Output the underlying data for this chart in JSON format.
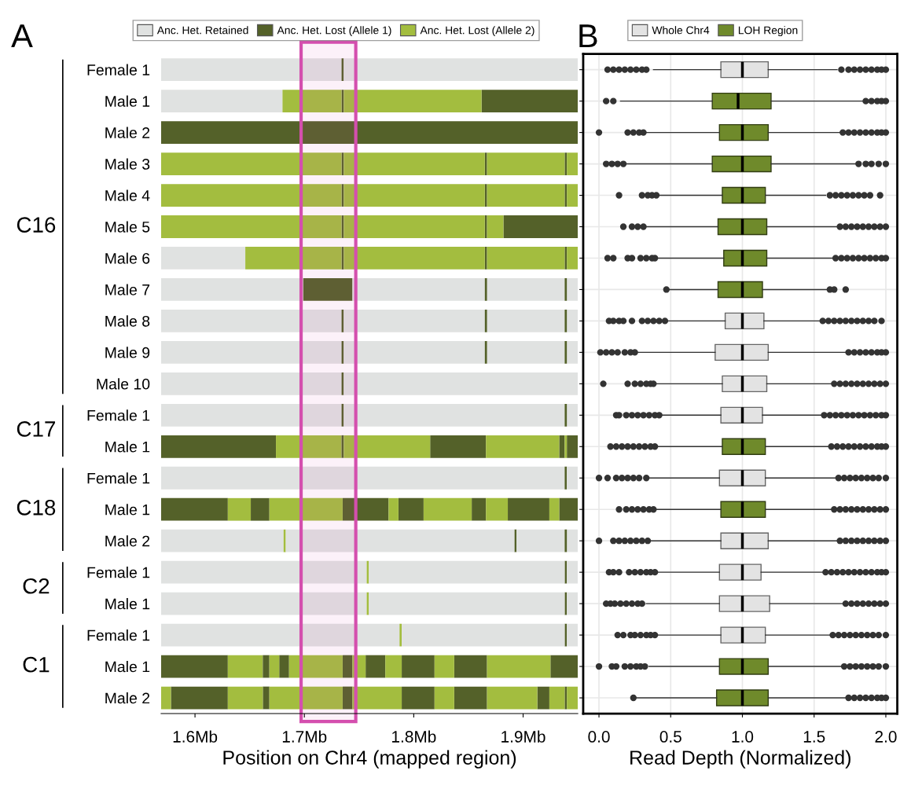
{
  "chart_data": [
    {
      "type": "bar",
      "title": "A",
      "orientation": "horizontal",
      "xlabel": "Position on Chr4 (mapped region)",
      "categories": [
        "Female 1",
        "Male 1",
        "Male 2",
        "Male 3",
        "Male 4",
        "Male 5",
        "Male 6",
        "Male 7",
        "Male 8",
        "Male 9",
        "Male 10",
        "Female 1",
        "Male 1",
        "Female 1",
        "Male 1",
        "Male 2",
        "Female 1",
        "Male 1",
        "Female 1",
        "Male 1",
        "Male 2"
      ],
      "annotations": [
        "C16",
        "C17",
        "C18",
        "C2",
        "C1"
      ],
      "xlim": [
        1.569,
        1.95
      ],
      "xticks": [
        {
          "value": 1.6,
          "label": "1.6Mb"
        },
        {
          "value": 1.7,
          "label": "1.7Mb"
        },
        {
          "value": 1.8,
          "label": "1.8Mb"
        },
        {
          "value": 1.9,
          "label": "1.9Mb"
        }
      ],
      "bands": [
        {
          "axis": "x",
          "from": 1.697,
          "to": 1.747,
          "color": "#d44fae"
        }
      ],
      "legend": "top",
      "series": [
        {
          "name": "Anc. Het. Retained",
          "color": "#e0e2e1",
          "base": [
            1.569,
            1.569,
            null,
            null,
            null,
            null,
            1.569,
            1.569,
            1.569,
            1.569,
            1.569,
            1.569,
            null,
            1.569,
            null,
            1.569,
            1.569,
            1.569,
            1.569,
            null,
            null
          ],
          "values": [
            0.165,
            0.111,
            null,
            null,
            null,
            null,
            0.077,
            0.13,
            0.165,
            0.165,
            0.165,
            0.165,
            null,
            0.369,
            null,
            0.112,
            0.188,
            0.188,
            0.218,
            null,
            null
          ]
        },
        {
          "name": "Anc. Het. Lost (Allele 1)",
          "color": "#546129",
          "base": [
            1.734,
            1.734,
            1.569,
            1.734,
            1.734,
            1.734,
            1.734,
            1.699,
            1.734,
            1.734,
            1.734,
            1.734,
            1.569,
            1.938,
            1.569,
            1.892,
            1.938,
            1.938,
            1.938,
            1.569,
            1.578
          ],
          "values": [
            0.002,
            0.002,
            0.381,
            0.002,
            0.002,
            0.002,
            0.002,
            0.045,
            0.002,
            0.002,
            0.002,
            0.002,
            0.105,
            0.002,
            0.061,
            0.002,
            0.002,
            0.002,
            0.002,
            0.061,
            0.052
          ]
        },
        {
          "name": "Anc. Het. Lost (Allele 2)",
          "color": "#a3bd3f",
          "base": [
            null,
            1.68,
            null,
            1.569,
            1.569,
            1.569,
            1.646,
            null,
            null,
            null,
            null,
            null,
            1.674,
            null,
            1.63,
            1.681,
            1.757,
            1.757,
            1.787,
            1.63,
            1.569
          ],
          "values": [
            null,
            0.054,
            null,
            0.165,
            0.165,
            0.165,
            0.088,
            null,
            null,
            null,
            null,
            null,
            0.06,
            null,
            0.021,
            0.002,
            0.002,
            0.002,
            0.002,
            0.032,
            0.009
          ]
        },
        {
          "color": "#e0e2e1",
          "base": [
            1.736,
            null,
            null,
            null,
            null,
            null,
            null,
            1.744,
            1.736,
            1.736,
            1.736,
            1.736,
            null,
            1.94,
            null,
            1.683,
            1.759,
            1.759,
            1.789,
            null,
            null
          ],
          "values": [
            0.214,
            null,
            null,
            null,
            null,
            null,
            null,
            0.121,
            0.129,
            0.129,
            0.214,
            0.202,
            null,
            0.01,
            null,
            0.209,
            0.179,
            0.179,
            0.149,
            null,
            null
          ]
        },
        {
          "color": "#e0e2e1",
          "base": [
            null,
            null,
            null,
            null,
            null,
            null,
            null,
            1.867,
            1.867,
            1.867,
            null,
            1.94,
            null,
            null,
            null,
            1.894,
            1.94,
            1.94,
            1.94,
            null,
            null
          ],
          "values": [
            null,
            null,
            null,
            null,
            null,
            null,
            null,
            0.071,
            0.071,
            0.071,
            null,
            0.01,
            null,
            null,
            null,
            0.044,
            0.01,
            0.01,
            0.01,
            null,
            null
          ]
        },
        {
          "color": "#e0e2e1",
          "base": [
            null,
            null,
            null,
            null,
            null,
            null,
            null,
            1.94,
            1.94,
            1.94,
            null,
            null,
            null,
            null,
            null,
            1.94,
            null,
            null,
            null,
            null,
            null
          ],
          "values": [
            null,
            null,
            null,
            null,
            null,
            null,
            null,
            0.01,
            0.01,
            0.01,
            null,
            null,
            null,
            null,
            null,
            0.01,
            null,
            null,
            null,
            null,
            null
          ]
        },
        {
          "color": "#546129",
          "base": [
            null,
            1.862,
            null,
            1.865,
            1.865,
            1.865,
            1.865,
            1.865,
            1.865,
            1.865,
            null,
            1.938,
            1.734,
            null,
            1.651,
            1.938,
            null,
            null,
            null,
            1.662,
            1.662
          ],
          "values": [
            null,
            0.088,
            null,
            0.002,
            0.002,
            0.002,
            0.002,
            0.002,
            0.002,
            0.002,
            null,
            0.002,
            0.002,
            null,
            0.017,
            0.002,
            null,
            null,
            null,
            0.006,
            0.006
          ]
        },
        {
          "color": "#546129",
          "base": [
            null,
            null,
            null,
            1.938,
            1.938,
            1.882,
            1.938,
            1.938,
            1.938,
            1.938,
            null,
            null,
            1.815,
            null,
            1.735,
            null,
            null,
            null,
            null,
            1.677,
            1.735
          ],
          "values": [
            null,
            null,
            null,
            0.002,
            0.002,
            0.068,
            0.002,
            0.002,
            0.002,
            0.002,
            null,
            null,
            0.051,
            null,
            0.042,
            null,
            null,
            null,
            null,
            0.009,
            0.009
          ]
        },
        {
          "color": "#546129",
          "base": [
            null,
            null,
            null,
            null,
            null,
            null,
            null,
            null,
            null,
            null,
            null,
            null,
            1.933,
            null,
            1.786,
            null,
            null,
            null,
            null,
            1.735,
            1.789
          ],
          "values": [
            null,
            null,
            null,
            null,
            null,
            null,
            null,
            null,
            null,
            null,
            null,
            null,
            0.005,
            null,
            0.023,
            null,
            null,
            null,
            null,
            0.009,
            0.03
          ]
        },
        {
          "color": "#546129",
          "base": [
            null,
            null,
            null,
            null,
            null,
            null,
            null,
            null,
            null,
            null,
            null,
            null,
            1.94,
            null,
            1.853,
            null,
            null,
            null,
            null,
            1.756,
            1.837
          ],
          "values": [
            null,
            null,
            null,
            null,
            null,
            null,
            null,
            null,
            null,
            null,
            null,
            null,
            0.01,
            null,
            0.013,
            null,
            null,
            null,
            null,
            0.018,
            0.03
          ]
        },
        {
          "color": "#546129",
          "base": [
            null,
            null,
            null,
            null,
            null,
            null,
            null,
            null,
            null,
            null,
            null,
            null,
            null,
            null,
            1.886,
            null,
            null,
            null,
            null,
            1.789,
            1.913
          ],
          "values": [
            null,
            null,
            null,
            null,
            null,
            null,
            null,
            null,
            null,
            null,
            null,
            null,
            null,
            null,
            0.038,
            null,
            null,
            null,
            null,
            0.03,
            0.011
          ]
        },
        {
          "color": "#546129",
          "base": [
            null,
            null,
            null,
            null,
            null,
            null,
            null,
            null,
            null,
            null,
            null,
            null,
            null,
            null,
            1.933,
            null,
            null,
            null,
            null,
            1.837,
            1.938
          ],
          "values": [
            null,
            null,
            null,
            null,
            null,
            null,
            null,
            null,
            null,
            null,
            null,
            null,
            null,
            null,
            0.017,
            null,
            null,
            null,
            null,
            0.03,
            0.002
          ]
        },
        {
          "color": "#546129",
          "base": [
            null,
            null,
            null,
            null,
            null,
            null,
            null,
            null,
            null,
            null,
            null,
            null,
            null,
            null,
            null,
            null,
            null,
            null,
            null,
            1.925,
            null
          ],
          "values": [
            null,
            null,
            null,
            null,
            null,
            null,
            null,
            null,
            null,
            null,
            null,
            null,
            null,
            null,
            null,
            null,
            null,
            null,
            null,
            0.025,
            null
          ]
        },
        {
          "color": "#a3bd3f",
          "base": [
            null,
            1.736,
            null,
            1.736,
            1.736,
            1.736,
            1.736,
            null,
            null,
            null,
            null,
            null,
            1.736,
            null,
            1.668,
            null,
            null,
            null,
            null,
            1.668,
            1.63
          ],
          "values": [
            null,
            0.126,
            null,
            0.129,
            0.129,
            0.129,
            0.129,
            null,
            null,
            null,
            null,
            null,
            0.079,
            null,
            0.067,
            null,
            null,
            null,
            null,
            0.009,
            0.032
          ]
        },
        {
          "color": "#a3bd3f",
          "base": [
            null,
            null,
            null,
            1.867,
            1.867,
            1.867,
            1.867,
            null,
            null,
            null,
            null,
            null,
            1.866,
            null,
            1.777,
            null,
            null,
            null,
            null,
            1.686,
            1.668
          ],
          "values": [
            null,
            null,
            null,
            0.071,
            0.071,
            0.015,
            0.071,
            null,
            null,
            null,
            null,
            null,
            0.067,
            null,
            0.009,
            null,
            null,
            null,
            null,
            0.049,
            0.067
          ]
        },
        {
          "color": "#a3bd3f",
          "base": [
            null,
            null,
            null,
            1.94,
            1.94,
            null,
            1.94,
            null,
            null,
            null,
            null,
            null,
            1.938,
            null,
            1.809,
            null,
            null,
            null,
            null,
            1.744,
            1.744
          ],
          "values": [
            null,
            null,
            null,
            0.01,
            0.01,
            null,
            0.01,
            null,
            null,
            null,
            null,
            null,
            0.002,
            null,
            0.044,
            null,
            null,
            null,
            null,
            0.012,
            0.045
          ]
        },
        {
          "color": "#a3bd3f",
          "base": [
            null,
            null,
            null,
            null,
            null,
            null,
            null,
            null,
            null,
            null,
            null,
            null,
            null,
            null,
            1.866,
            null,
            null,
            null,
            null,
            1.774,
            1.819
          ],
          "values": [
            null,
            null,
            null,
            null,
            null,
            null,
            null,
            null,
            null,
            null,
            null,
            null,
            null,
            null,
            0.02,
            null,
            null,
            null,
            null,
            0.015,
            0.018
          ]
        },
        {
          "color": "#a3bd3f",
          "base": [
            null,
            null,
            null,
            null,
            null,
            null,
            null,
            null,
            null,
            null,
            null,
            null,
            null,
            null,
            1.924,
            null,
            null,
            null,
            null,
            1.819,
            1.867
          ],
          "values": [
            null,
            null,
            null,
            null,
            null,
            null,
            null,
            null,
            null,
            null,
            null,
            null,
            null,
            null,
            0.009,
            null,
            null,
            null,
            null,
            0.018,
            0.046
          ]
        },
        {
          "color": "#a3bd3f",
          "base": [
            null,
            null,
            null,
            null,
            null,
            null,
            null,
            null,
            null,
            null,
            null,
            null,
            null,
            null,
            null,
            null,
            null,
            null,
            null,
            1.867,
            1.924
          ],
          "values": [
            null,
            null,
            null,
            null,
            null,
            null,
            null,
            null,
            null,
            null,
            null,
            null,
            null,
            null,
            null,
            null,
            null,
            null,
            null,
            0.058,
            0.014
          ]
        },
        {
          "color": "#a3bd3f",
          "base": [
            null,
            null,
            null,
            null,
            null,
            null,
            null,
            null,
            null,
            null,
            null,
            null,
            null,
            null,
            null,
            null,
            null,
            null,
            null,
            null,
            1.94
          ],
          "values": [
            null,
            null,
            null,
            null,
            null,
            null,
            null,
            null,
            null,
            null,
            null,
            null,
            null,
            null,
            null,
            null,
            null,
            null,
            null,
            null,
            0.01
          ]
        }
      ]
    },
    {
      "type": "box",
      "title": "B",
      "orientation": "horizontal",
      "xlabel": "Read Depth (Normalized)",
      "categories": [
        null,
        null,
        null,
        null,
        null,
        null,
        null,
        null,
        null,
        null,
        null,
        null,
        null,
        null,
        null,
        null,
        null,
        null,
        null,
        null,
        null
      ],
      "xlim": [
        -0.11,
        2.08
      ],
      "xticks": [
        {
          "value": 0,
          "label": "0.0"
        },
        {
          "value": 0.5,
          "label": "0.5"
        },
        {
          "value": 1,
          "label": "1.0"
        },
        {
          "value": 1.5,
          "label": "1.5"
        },
        {
          "value": 2,
          "label": "2.0"
        }
      ],
      "grid": true,
      "legend": "top",
      "tick_labels": "x",
      "series": [
        {
          "name": "Whole Chr4",
          "color": "#e3e3e3",
          "boxes": [
            {
              "low": 0.38,
              "q1": 0.85,
              "median": 1.0,
              "q3": 1.18,
              "high": 1.66,
              "outliers": [
                0.06,
                0.1,
                0.14,
                0.18,
                0.22,
                0.26,
                0.3,
                0.33,
                1.69,
                1.74,
                1.78,
                1.82,
                1.86,
                1.9,
                1.94,
                1.97,
                2.0
              ]
            },
            null,
            null,
            null,
            null,
            null,
            null,
            null,
            {
              "low": 0.48,
              "q1": 0.88,
              "median": 1.0,
              "q3": 1.15,
              "high": 1.54,
              "outliers": [
                0.07,
                0.1,
                0.14,
                0.17,
                0.23,
                0.3,
                0.34,
                0.38,
                0.42,
                0.46,
                1.56,
                1.6,
                1.64,
                1.68,
                1.72,
                1.76,
                1.8,
                1.84,
                1.88,
                1.92,
                1.97
              ]
            },
            {
              "low": 0.27,
              "q1": 0.81,
              "median": 1.0,
              "q3": 1.18,
              "high": 1.72,
              "outliers": [
                0.01,
                0.05,
                0.09,
                0.13,
                0.18,
                0.22,
                0.25,
                1.74,
                1.78,
                1.82,
                1.86,
                1.9,
                1.94,
                1.97,
                2.0
              ]
            },
            {
              "low": 0.4,
              "q1": 0.86,
              "median": 1.0,
              "q3": 1.17,
              "high": 1.62,
              "outliers": [
                0.03,
                0.2,
                0.25,
                0.29,
                0.33,
                0.36,
                0.38,
                1.64,
                1.68,
                1.72,
                1.76,
                1.8,
                1.84,
                1.88,
                1.92,
                1.96,
                2.0
              ]
            },
            {
              "low": 0.44,
              "q1": 0.85,
              "median": 1.0,
              "q3": 1.14,
              "high": 1.55,
              "outliers": [
                0.12,
                0.14,
                0.19,
                0.23,
                0.27,
                0.31,
                0.35,
                0.39,
                0.42,
                1.57,
                1.61,
                1.65,
                1.69,
                1.73,
                1.77,
                1.81,
                1.85,
                1.89,
                1.93,
                1.97,
                2.0
              ]
            },
            null,
            {
              "low": 0.35,
              "q1": 0.84,
              "median": 1.0,
              "q3": 1.16,
              "high": 1.65,
              "outliers": [
                0.0,
                0.06,
                0.12,
                0.16,
                0.2,
                0.24,
                0.28,
                0.33,
                1.67,
                1.71,
                1.75,
                1.79,
                1.83,
                1.87,
                1.91,
                1.95,
                2.0
              ]
            },
            null,
            {
              "low": 0.36,
              "q1": 0.85,
              "median": 1.0,
              "q3": 1.18,
              "high": 1.66,
              "outliers": [
                0.0,
                0.1,
                0.14,
                0.18,
                0.22,
                0.26,
                0.3,
                0.34,
                1.68,
                1.72,
                1.76,
                1.8,
                1.84,
                1.88,
                1.92,
                1.96,
                2.0
              ]
            },
            {
              "low": 0.41,
              "q1": 0.84,
              "median": 1.0,
              "q3": 1.13,
              "high": 1.56,
              "outliers": [
                0.07,
                0.1,
                0.14,
                0.21,
                0.25,
                0.29,
                0.33,
                0.36,
                0.39,
                1.58,
                1.62,
                1.66,
                1.7,
                1.74,
                1.78,
                1.82,
                1.86,
                1.9,
                1.94,
                1.97,
                2.0
              ]
            },
            {
              "low": 0.33,
              "q1": 0.84,
              "median": 1.0,
              "q3": 1.19,
              "high": 1.7,
              "outliers": [
                0.05,
                0.08,
                0.11,
                0.15,
                0.19,
                0.23,
                0.27,
                0.3,
                1.72,
                1.76,
                1.8,
                1.84,
                1.88,
                1.92,
                1.96,
                2.0
              ]
            },
            {
              "low": 0.41,
              "q1": 0.85,
              "median": 1.0,
              "q3": 1.16,
              "high": 1.61,
              "outliers": [
                0.13,
                0.17,
                0.22,
                0.25,
                0.29,
                0.33,
                0.36,
                0.39,
                1.63,
                1.67,
                1.71,
                1.75,
                1.79,
                1.83,
                1.87,
                1.91,
                1.95,
                2.0
              ]
            },
            null,
            null
          ]
        },
        {
          "name": "LOH Region",
          "color": "#6f8a2b",
          "boxes": [
            null,
            {
              "low": 0.15,
              "q1": 0.79,
              "median": 0.97,
              "q3": 1.2,
              "high": 1.84,
              "outliers": [
                0.05,
                0.1,
                1.86,
                1.9,
                1.94,
                1.97,
                2.0
              ]
            },
            {
              "low": 0.33,
              "q1": 0.84,
              "median": 1.0,
              "q3": 1.18,
              "high": 1.68,
              "outliers": [
                0.0,
                0.2,
                0.24,
                0.28,
                0.31,
                1.7,
                1.74,
                1.78,
                1.82,
                1.86,
                1.9,
                1.94,
                1.97,
                2.0
              ]
            },
            {
              "low": 0.19,
              "q1": 0.79,
              "median": 1.0,
              "q3": 1.2,
              "high": 1.79,
              "outliers": [
                0.05,
                0.09,
                0.13,
                0.17,
                1.81,
                1.86,
                1.9,
                1.95,
                2.0
              ]
            },
            {
              "low": 0.42,
              "q1": 0.86,
              "median": 1.0,
              "q3": 1.16,
              "high": 1.58,
              "outliers": [
                0.14,
                0.3,
                0.34,
                0.37,
                0.4,
                1.61,
                1.65,
                1.69,
                1.73,
                1.77,
                1.81,
                1.85,
                1.89,
                1.96
              ]
            },
            {
              "low": 0.33,
              "q1": 0.83,
              "median": 1.0,
              "q3": 1.17,
              "high": 1.66,
              "outliers": [
                0.17,
                0.23,
                0.27,
                0.31,
                1.68,
                1.72,
                1.76,
                1.8,
                1.84,
                1.88,
                1.92,
                1.96,
                2.0
              ]
            },
            {
              "low": 0.41,
              "q1": 0.87,
              "median": 1.0,
              "q3": 1.17,
              "high": 1.63,
              "outliers": [
                0.06,
                0.1,
                0.2,
                0.23,
                0.29,
                0.33,
                0.37,
                0.39,
                1.65,
                1.69,
                1.73,
                1.77,
                1.81,
                1.85,
                1.89,
                1.93,
                1.97,
                2.0
              ]
            },
            {
              "low": 0.49,
              "q1": 0.83,
              "median": 1.0,
              "q3": 1.14,
              "high": 1.59,
              "outliers": [
                0.47,
                1.61,
                1.64,
                1.72
              ]
            },
            null,
            null,
            null,
            null,
            {
              "low": 0.41,
              "q1": 0.86,
              "median": 1.0,
              "q3": 1.16,
              "high": 1.6,
              "outliers": [
                0.08,
                0.12,
                0.16,
                0.2,
                0.24,
                0.28,
                0.32,
                0.36,
                0.39,
                1.62,
                1.66,
                1.7,
                1.74,
                1.78,
                1.82,
                1.86,
                1.9,
                1.94,
                1.97,
                2.0
              ]
            },
            null,
            {
              "low": 0.4,
              "q1": 0.85,
              "median": 1.0,
              "q3": 1.16,
              "high": 1.62,
              "outliers": [
                0.14,
                0.19,
                0.23,
                0.27,
                0.31,
                0.35,
                0.38,
                1.64,
                1.68,
                1.72,
                1.76,
                1.8,
                1.84,
                1.88,
                1.92,
                1.96,
                2.0
              ]
            },
            null,
            null,
            null,
            null,
            {
              "low": 0.35,
              "q1": 0.84,
              "median": 1.0,
              "q3": 1.18,
              "high": 1.69,
              "outliers": [
                0.0,
                0.09,
                0.12,
                0.18,
                0.22,
                0.26,
                0.29,
                0.32,
                1.71,
                1.75,
                1.79,
                1.83,
                1.87,
                1.91,
                1.95,
                2.0
              ]
            },
            {
              "low": 0.26,
              "q1": 0.82,
              "median": 1.0,
              "q3": 1.18,
              "high": 1.72,
              "outliers": [
                0.24,
                1.74,
                1.78,
                1.82,
                1.86,
                1.9,
                1.94,
                1.97,
                2.0
              ]
            }
          ]
        }
      ]
    }
  ]
}
